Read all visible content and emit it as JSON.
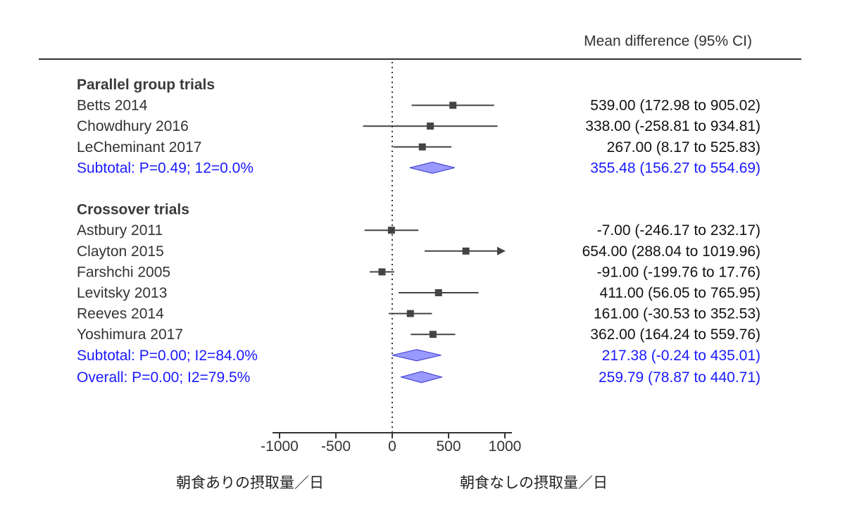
{
  "chart_data": {
    "type": "forest",
    "header": "Mean difference (95% CI)",
    "xlim": [
      -1000,
      1000
    ],
    "xticks": [
      -1000,
      -500,
      0,
      500,
      1000
    ],
    "xtick_labels": [
      "-1000",
      "-500",
      "0",
      "500",
      "1000"
    ],
    "reference_line": 0,
    "left_label": "朝食ありの摂取量／日",
    "right_label": "朝食なしの摂取量／日",
    "colors": {
      "marker": "#444444",
      "diamond_fill": "#9999ff",
      "diamond_edge": "#3333cc",
      "summary_text": "#1a1aff"
    },
    "groups": [
      {
        "title": "Parallel group trials",
        "studies": [
          {
            "name": "Betts 2014",
            "est": 539.0,
            "lo": 172.98,
            "hi": 905.02,
            "label": "539.00 (172.98 to 905.02)"
          },
          {
            "name": "Chowdhury 2016",
            "est": 338.0,
            "lo": -258.81,
            "hi": 934.81,
            "label": "338.00 (-258.81 to 934.81)"
          },
          {
            "name": "LeCheminant 2017",
            "est": 267.0,
            "lo": 8.17,
            "hi": 525.83,
            "label": "267.00 (8.17 to 525.83)"
          }
        ],
        "subtotal": {
          "name": "Subtotal: P=0.49; 12=0.0%",
          "est": 355.48,
          "lo": 156.27,
          "hi": 554.69,
          "label": "355.48 (156.27 to 554.69)"
        }
      },
      {
        "title": "Crossover trials",
        "studies": [
          {
            "name": "Astbury 2011",
            "est": -7.0,
            "lo": -246.17,
            "hi": 232.17,
            "label": "-7.00 (-246.17 to 232.17)"
          },
          {
            "name": "Clayton 2015",
            "est": 654.0,
            "lo": 288.04,
            "hi": 1019.96,
            "label": "654.00 (288.04 to 1019.96)"
          },
          {
            "name": "Farshchi 2005",
            "est": -91.0,
            "lo": -199.76,
            "hi": 17.76,
            "label": "-91.00 (-199.76 to 17.76)"
          },
          {
            "name": "Levitsky 2013",
            "est": 411.0,
            "lo": 56.05,
            "hi": 765.95,
            "label": "411.00 (56.05 to 765.95)"
          },
          {
            "name": "Reeves 2014",
            "est": 161.0,
            "lo": -30.53,
            "hi": 352.53,
            "label": "161.00 (-30.53 to 352.53)"
          },
          {
            "name": "Yoshimura 2017",
            "est": 362.0,
            "lo": 164.24,
            "hi": 559.76,
            "label": "362.00 (164.24 to 559.76)"
          }
        ],
        "subtotal": {
          "name": "Subtotal: P=0.00; I2=84.0%",
          "est": 217.38,
          "lo": -0.24,
          "hi": 435.01,
          "label": "217.38 (-0.24 to 435.01)"
        }
      }
    ],
    "overall": {
      "name": "Overall: P=0.00; I2=79.5%",
      "est": 259.79,
      "lo": 78.87,
      "hi": 440.71,
      "label": "259.79 (78.87 to 440.71)"
    }
  }
}
